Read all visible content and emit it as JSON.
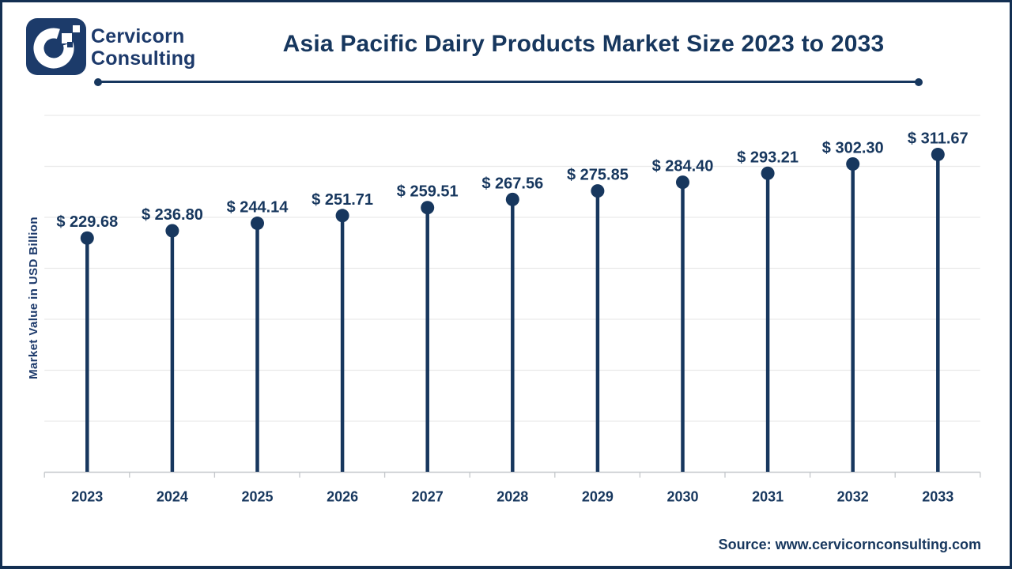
{
  "brand": {
    "line1": "Cervicorn",
    "line2": "Consulting",
    "logo_color": "#1c3b6a"
  },
  "header": {
    "title": "Asia Pacific Dairy Products Market Size 2023 to 2033"
  },
  "footer": {
    "source_text": "Source: www.cervicornconsulting.com"
  },
  "chart_data": {
    "type": "bar",
    "variant": "lollipop",
    "title": "Asia Pacific Dairy Products Market Size 2023 to 2033",
    "xlabel": "",
    "ylabel": "Market Value in USD Billion",
    "categories": [
      "2023",
      "2024",
      "2025",
      "2026",
      "2027",
      "2028",
      "2029",
      "2030",
      "2031",
      "2032",
      "2033"
    ],
    "values": [
      229.68,
      236.8,
      244.14,
      251.71,
      259.51,
      267.56,
      275.85,
      284.4,
      293.21,
      302.3,
      311.67
    ],
    "labels": [
      "$ 229.68",
      "$ 236.80",
      "$ 244.14",
      "$ 251.71",
      "$ 259.51",
      "$ 267.56",
      "$ 275.85",
      "$ 284.40",
      "$ 293.21",
      "$ 302.30",
      "$ 311.67"
    ],
    "ylim": [
      0,
      350
    ],
    "grid_step": 50,
    "grid": "horizontal-only, no y tick labels",
    "legend": "none",
    "accent_color": "#17375e",
    "gridline_color": "#e9e9e9",
    "axis_color": "#c4c7cb"
  }
}
